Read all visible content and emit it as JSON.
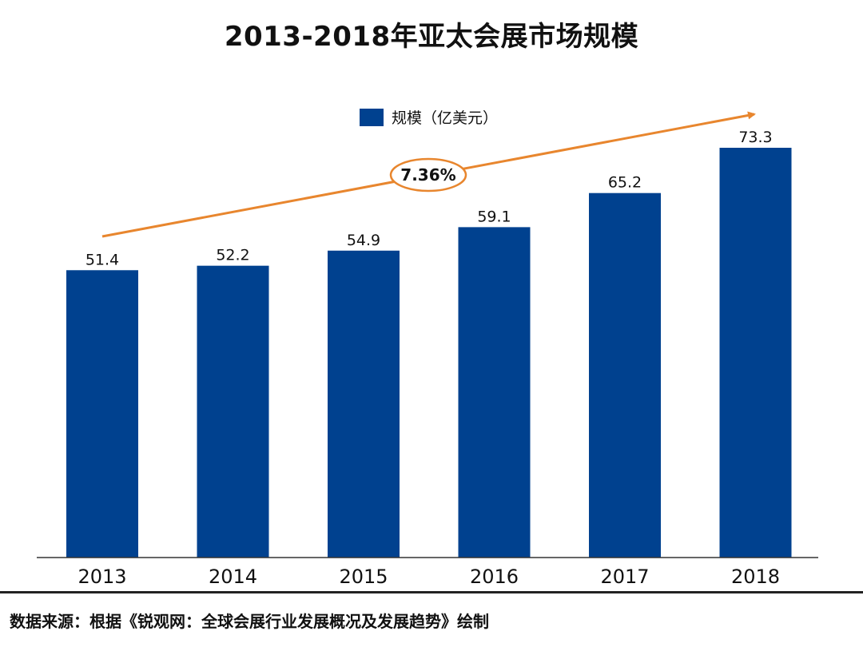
{
  "chart_data": {
    "type": "bar",
    "title": "2013-2018年亚太会展市场规模",
    "categories": [
      "2013",
      "2014",
      "2015",
      "2016",
      "2017",
      "2018"
    ],
    "series": [
      {
        "name": "规模（亿美元）",
        "values": [
          51.4,
          52.2,
          54.9,
          59.1,
          65.2,
          73.3
        ],
        "color": "#00418f"
      }
    ],
    "value_labels": [
      "51.4",
      "52.2",
      "54.9",
      "59.1",
      "65.2",
      "73.3"
    ],
    "ylim": [
      0,
      73.3
    ],
    "annotation": {
      "text": "7.36%",
      "arrow_color": "#e8862e"
    },
    "legend_position": "top-center",
    "grid": false
  },
  "source_text": "数据来源：根据《锐观网：全球会展行业发展概况及发展趋势》绘制"
}
